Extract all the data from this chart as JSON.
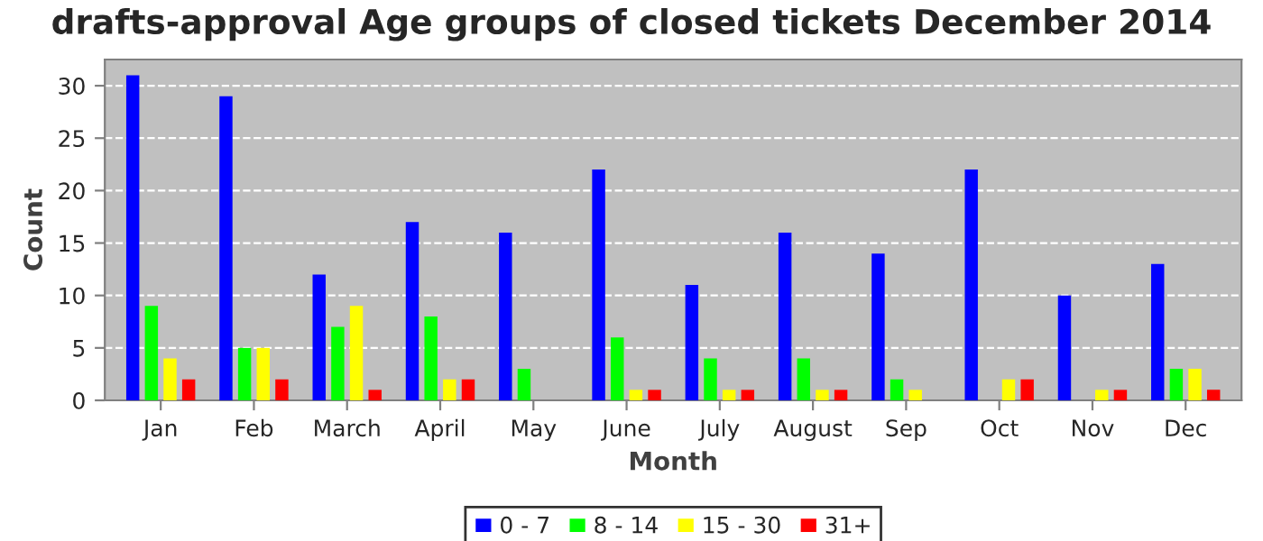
{
  "chart_data": {
    "type": "bar",
    "title": "drafts-approval Age groups of closed tickets December 2014",
    "xlabel": "Month",
    "ylabel": "Count",
    "categories": [
      "Jan",
      "Feb",
      "March",
      "April",
      "May",
      "June",
      "July",
      "August",
      "Sep",
      "Oct",
      "Nov",
      "Dec"
    ],
    "series": [
      {
        "name": "0 - 7",
        "color": "#0000ff",
        "values": [
          31,
          29,
          12,
          17,
          16,
          22,
          11,
          16,
          14,
          22,
          10,
          13
        ]
      },
      {
        "name": "8 - 14",
        "color": "#00ff00",
        "values": [
          9,
          5,
          7,
          8,
          3,
          6,
          4,
          4,
          2,
          0,
          0,
          3
        ]
      },
      {
        "name": "15 - 30",
        "color": "#ffff00",
        "values": [
          4,
          5,
          9,
          2,
          0,
          1,
          1,
          1,
          1,
          2,
          1,
          3
        ]
      },
      {
        "name": "31+",
        "color": "#ff0000",
        "values": [
          2,
          2,
          1,
          2,
          0,
          1,
          1,
          1,
          0,
          2,
          1,
          1
        ]
      }
    ],
    "ylim": [
      0,
      32.5
    ],
    "yticks": [
      0,
      5,
      10,
      15,
      20,
      25,
      30
    ],
    "grid": "y",
    "legend": "bottom"
  }
}
